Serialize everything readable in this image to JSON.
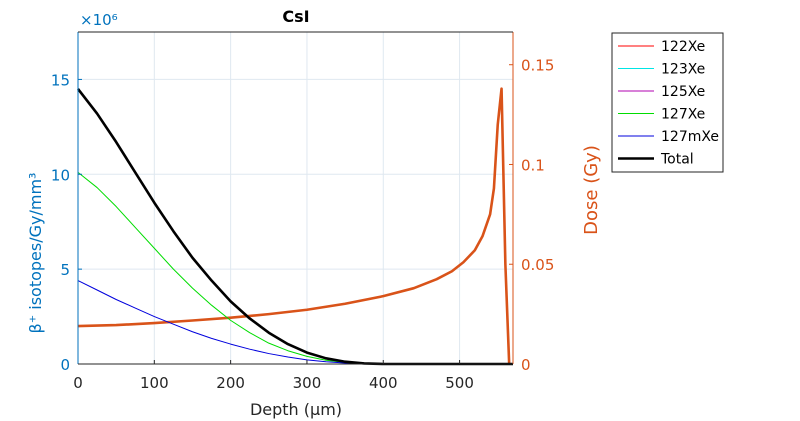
{
  "chart_data": {
    "type": "line",
    "title": "CsI",
    "xlabel": "Depth (μm)",
    "ylabel_left": "β⁺ isotopes/Gy/mm³",
    "ylabel_right": "Dose (Gy)",
    "left_exponent": "×10⁶",
    "xlim": [
      0,
      570
    ],
    "ylim_left": [
      0,
      17.5
    ],
    "ylim_right": [
      0,
      0.1664
    ],
    "x_ticks": [
      0,
      100,
      200,
      300,
      400,
      500
    ],
    "left_ticks": [
      0,
      5,
      10,
      15
    ],
    "right_ticks": [
      0,
      0.05,
      0.1,
      0.15
    ],
    "right_tick_labels": [
      "0",
      "0.05",
      "0.1",
      "0.15"
    ],
    "grid": true,
    "legend_position": "outside-top-right",
    "colors": {
      "left_axis": "#0072BD",
      "right_axis": "#D95319",
      "grid": "#dfe8f0"
    },
    "series": [
      {
        "name": "122Xe",
        "axis": "left",
        "color": "#ff0000",
        "width": 1,
        "x": [
          0,
          400,
          570
        ],
        "y": [
          0,
          0,
          0
        ]
      },
      {
        "name": "123Xe",
        "axis": "left",
        "color": "#00e5e5",
        "width": 1,
        "x": [
          0,
          400,
          570
        ],
        "y": [
          0,
          0,
          0
        ]
      },
      {
        "name": "125Xe",
        "axis": "left",
        "color": "#b000b0",
        "width": 1,
        "x": [
          0,
          400,
          570
        ],
        "y": [
          0,
          0,
          0
        ]
      },
      {
        "name": "127Xe",
        "axis": "left",
        "color": "#00dd00",
        "width": 1,
        "x": [
          0,
          25,
          50,
          75,
          100,
          125,
          150,
          175,
          200,
          225,
          250,
          275,
          300,
          325,
          350,
          375,
          400,
          570
        ],
        "y": [
          10.1,
          9.3,
          8.3,
          7.2,
          6.1,
          5.0,
          4.0,
          3.1,
          2.3,
          1.65,
          1.1,
          0.7,
          0.4,
          0.2,
          0.08,
          0.02,
          0,
          0
        ]
      },
      {
        "name": "127mXe",
        "axis": "left",
        "color": "#0000dd",
        "width": 1,
        "x": [
          0,
          25,
          50,
          75,
          100,
          125,
          150,
          175,
          200,
          225,
          250,
          275,
          300,
          325,
          350,
          375,
          400,
          570
        ],
        "y": [
          4.4,
          3.9,
          3.4,
          2.95,
          2.5,
          2.1,
          1.7,
          1.35,
          1.05,
          0.78,
          0.55,
          0.37,
          0.22,
          0.12,
          0.05,
          0.01,
          0,
          0
        ]
      },
      {
        "name": "Total",
        "axis": "left",
        "color": "#000000",
        "width": 2.6,
        "x": [
          0,
          25,
          50,
          75,
          100,
          125,
          150,
          175,
          200,
          225,
          250,
          275,
          300,
          325,
          350,
          375,
          400,
          570
        ],
        "y": [
          14.5,
          13.2,
          11.7,
          10.1,
          8.5,
          7.0,
          5.6,
          4.4,
          3.3,
          2.4,
          1.65,
          1.05,
          0.6,
          0.3,
          0.12,
          0.03,
          0,
          0
        ]
      },
      {
        "name": "Dose",
        "axis": "right",
        "color": "#D95319",
        "width": 2.6,
        "legend": false,
        "x": [
          0,
          50,
          100,
          150,
          200,
          250,
          300,
          350,
          400,
          440,
          470,
          490,
          505,
          520,
          530,
          540,
          545,
          550,
          555,
          560,
          565
        ],
        "y": [
          0.019,
          0.0195,
          0.0205,
          0.0218,
          0.0232,
          0.025,
          0.0272,
          0.0302,
          0.034,
          0.038,
          0.0425,
          0.0465,
          0.051,
          0.057,
          0.064,
          0.075,
          0.088,
          0.12,
          0.138,
          0.05,
          0.0
        ]
      }
    ]
  }
}
